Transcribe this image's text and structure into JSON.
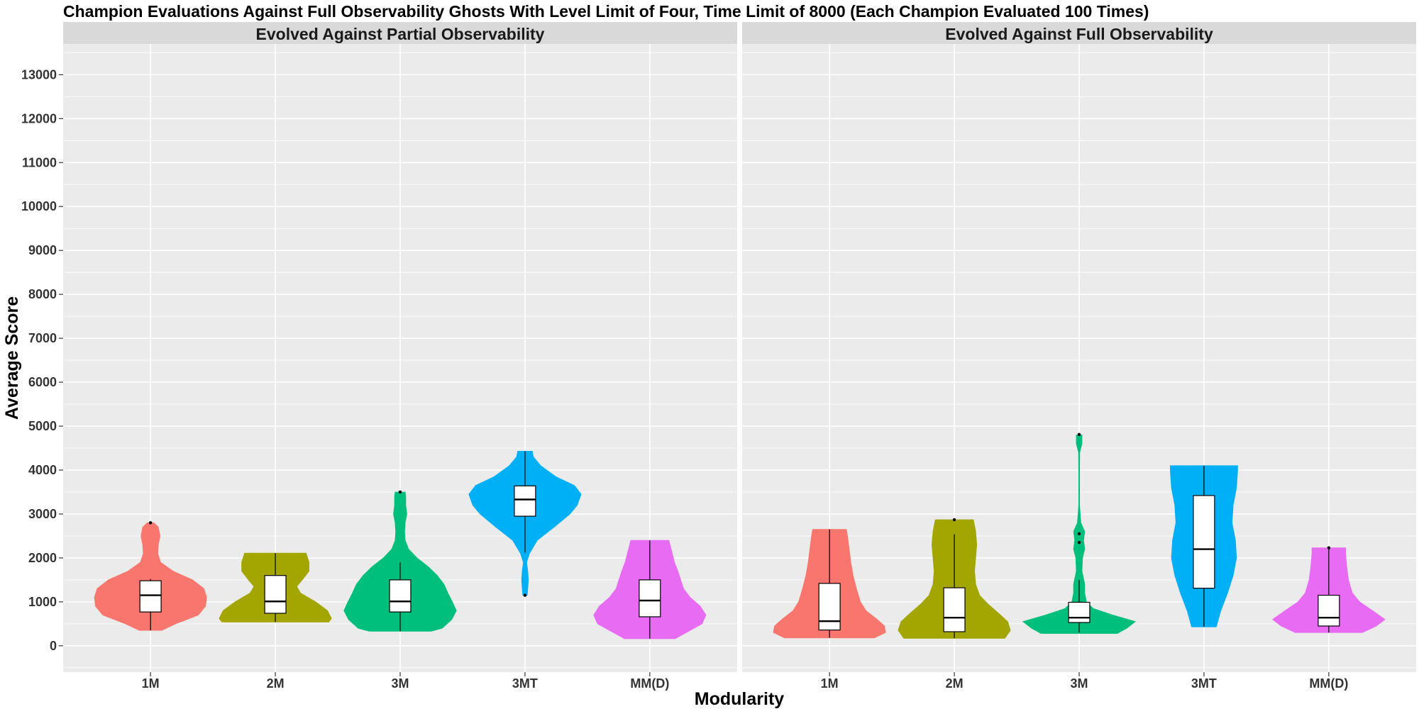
{
  "chart_data": {
    "type": "violin",
    "title": "Champion Evaluations Against Full Observability Ghosts With Level Limit of Four, Time Limit of 8000  (Each Champion Evaluated 100 Times)",
    "xlabel": "Modularity",
    "ylabel": "Average Score",
    "ylim": [
      -600,
      13700
    ],
    "yticks": [
      0,
      1000,
      2000,
      3000,
      4000,
      5000,
      6000,
      7000,
      8000,
      9000,
      10000,
      11000,
      12000,
      13000
    ],
    "categories": [
      "1M",
      "2M",
      "3M",
      "3MT",
      "MM(D)"
    ],
    "colors": {
      "1M": "#F8766D",
      "2M": "#A3A500",
      "3M": "#00BF7D",
      "3MT": "#00B0F6",
      "MM(D)": "#E76BF3"
    },
    "panel_background": "#EBEBEB",
    "strip_background": "#D9D9D9",
    "grid": true,
    "legend": "none",
    "panels": [
      {
        "name": "Evolved Against Partial Observability",
        "groups": [
          {
            "category": "1M",
            "box": {
              "q1": 770,
              "median": 1150,
              "q3": 1480,
              "whisker_low": 350,
              "whisker_high": 1520
            },
            "outliers": [
              2800
            ],
            "violin": [
              [
                350,
                0.2
              ],
              [
                500,
                0.45
              ],
              [
                700,
                0.85
              ],
              [
                900,
                0.98
              ],
              [
                1100,
                1.0
              ],
              [
                1300,
                0.95
              ],
              [
                1500,
                0.75
              ],
              [
                1700,
                0.4
              ],
              [
                1900,
                0.18
              ],
              [
                2100,
                0.13
              ],
              [
                2300,
                0.14
              ],
              [
                2500,
                0.17
              ],
              [
                2700,
                0.14
              ],
              [
                2800,
                0.06
              ]
            ]
          },
          {
            "category": "2M",
            "box": {
              "q1": 740,
              "median": 1010,
              "q3": 1600,
              "whisker_low": 540,
              "whisker_high": 2110
            },
            "outliers": [],
            "violin": [
              [
                540,
                0.95
              ],
              [
                620,
                1.0
              ],
              [
                800,
                0.93
              ],
              [
                1000,
                0.72
              ],
              [
                1200,
                0.45
              ],
              [
                1350,
                0.38
              ],
              [
                1500,
                0.48
              ],
              [
                1700,
                0.6
              ],
              [
                1900,
                0.6
              ],
              [
                2100,
                0.55
              ],
              [
                2110,
                0.55
              ]
            ]
          },
          {
            "category": "3M",
            "box": {
              "q1": 770,
              "median": 1010,
              "q3": 1500,
              "whisker_low": 330,
              "whisker_high": 1900
            },
            "outliers": [
              3500
            ],
            "violin": [
              [
                330,
                0.55
              ],
              [
                400,
                0.75
              ],
              [
                600,
                0.92
              ],
              [
                800,
                1.0
              ],
              [
                1000,
                0.93
              ],
              [
                1200,
                0.85
              ],
              [
                1400,
                0.78
              ],
              [
                1600,
                0.66
              ],
              [
                1800,
                0.5
              ],
              [
                2000,
                0.3
              ],
              [
                2200,
                0.15
              ],
              [
                2400,
                0.09
              ],
              [
                2600,
                0.08
              ],
              [
                2800,
                0.09
              ],
              [
                3000,
                0.12
              ],
              [
                3200,
                0.1
              ],
              [
                3400,
                0.1
              ],
              [
                3500,
                0.09
              ]
            ]
          },
          {
            "category": "3MT",
            "box": {
              "q1": 2950,
              "median": 3330,
              "q3": 3640,
              "whisker_low": 2120,
              "whisker_high": 4430
            },
            "outliers": [
              1150
            ],
            "violin": [
              [
                1150,
                0.04
              ],
              [
                1300,
                0.05
              ],
              [
                1500,
                0.06
              ],
              [
                1700,
                0.05
              ],
              [
                1900,
                0.03
              ],
              [
                2100,
                0.08
              ],
              [
                2400,
                0.22
              ],
              [
                2700,
                0.52
              ],
              [
                3000,
                0.8
              ],
              [
                3200,
                0.93
              ],
              [
                3450,
                1.0
              ],
              [
                3650,
                0.88
              ],
              [
                3850,
                0.55
              ],
              [
                4100,
                0.28
              ],
              [
                4300,
                0.15
              ],
              [
                4430,
                0.13
              ]
            ]
          },
          {
            "category": "MM(D)",
            "box": {
              "q1": 660,
              "median": 1030,
              "q3": 1500,
              "whisker_low": 160,
              "whisker_high": 2400
            },
            "outliers": [],
            "violin": [
              [
                160,
                0.45
              ],
              [
                300,
                0.65
              ],
              [
                500,
                0.93
              ],
              [
                700,
                1.0
              ],
              [
                900,
                0.9
              ],
              [
                1100,
                0.72
              ],
              [
                1300,
                0.6
              ],
              [
                1500,
                0.55
              ],
              [
                1700,
                0.5
              ],
              [
                1900,
                0.44
              ],
              [
                2100,
                0.4
              ],
              [
                2300,
                0.36
              ],
              [
                2400,
                0.34
              ]
            ]
          }
        ]
      },
      {
        "name": "Evolved Against Full Observability",
        "groups": [
          {
            "category": "1M",
            "box": {
              "q1": 360,
              "median": 560,
              "q3": 1420,
              "whisker_low": 180,
              "whisker_high": 2650
            },
            "outliers": [],
            "violin": [
              [
                180,
                0.8
              ],
              [
                300,
                1.0
              ],
              [
                450,
                0.98
              ],
              [
                600,
                0.85
              ],
              [
                800,
                0.65
              ],
              [
                1000,
                0.55
              ],
              [
                1300,
                0.48
              ],
              [
                1600,
                0.42
              ],
              [
                1900,
                0.38
              ],
              [
                2200,
                0.35
              ],
              [
                2500,
                0.32
              ],
              [
                2650,
                0.3
              ]
            ]
          },
          {
            "category": "2M",
            "box": {
              "q1": 320,
              "median": 640,
              "q3": 1320,
              "whisker_low": 170,
              "whisker_high": 2540
            },
            "outliers": [
              2870
            ],
            "violin": [
              [
                170,
                0.9
              ],
              [
                350,
                1.0
              ],
              [
                550,
                0.95
              ],
              [
                750,
                0.78
              ],
              [
                950,
                0.6
              ],
              [
                1150,
                0.45
              ],
              [
                1400,
                0.38
              ],
              [
                1700,
                0.36
              ],
              [
                2000,
                0.38
              ],
              [
                2300,
                0.4
              ],
              [
                2600,
                0.38
              ],
              [
                2870,
                0.34
              ]
            ]
          },
          {
            "category": "3M",
            "box": {
              "q1": 530,
              "median": 640,
              "q3": 990,
              "whisker_low": 300,
              "whisker_high": 1500
            },
            "outliers": [
              2350,
              2550,
              4810
            ],
            "violin": [
              [
                280,
                0.68
              ],
              [
                400,
                0.85
              ],
              [
                550,
                1.0
              ],
              [
                700,
                0.6
              ],
              [
                850,
                0.25
              ],
              [
                1000,
                0.13
              ],
              [
                1200,
                0.1
              ],
              [
                1400,
                0.1
              ],
              [
                1700,
                0.05
              ],
              [
                2000,
                0.06
              ],
              [
                2200,
                0.1
              ],
              [
                2400,
                0.08
              ],
              [
                2600,
                0.1
              ],
              [
                2800,
                0.03
              ],
              [
                3200,
                0.007
              ],
              [
                3600,
                0.007
              ],
              [
                4000,
                0.007
              ],
              [
                4400,
                0.01
              ],
              [
                4600,
                0.05
              ],
              [
                4800,
                0.05
              ]
            ]
          },
          {
            "category": "3MT",
            "box": {
              "q1": 1310,
              "median": 2200,
              "q3": 3420,
              "whisker_low": 430,
              "whisker_high": 4100
            },
            "outliers": [],
            "violin": [
              [
                430,
                0.22
              ],
              [
                800,
                0.3
              ],
              [
                1200,
                0.42
              ],
              [
                1600,
                0.52
              ],
              [
                2000,
                0.58
              ],
              [
                2400,
                0.56
              ],
              [
                2800,
                0.5
              ],
              [
                3200,
                0.52
              ],
              [
                3600,
                0.58
              ],
              [
                4000,
                0.6
              ],
              [
                4100,
                0.6
              ]
            ]
          },
          {
            "category": "MM(D)",
            "box": {
              "q1": 450,
              "median": 640,
              "q3": 1150,
              "whisker_low": 300,
              "whisker_high": 2230
            },
            "outliers": [
              2230
            ],
            "violin": [
              [
                300,
                0.6
              ],
              [
                450,
                0.85
              ],
              [
                600,
                1.0
              ],
              [
                800,
                0.78
              ],
              [
                1000,
                0.55
              ],
              [
                1200,
                0.42
              ],
              [
                1500,
                0.35
              ],
              [
                1800,
                0.32
              ],
              [
                2100,
                0.3
              ],
              [
                2230,
                0.3
              ]
            ]
          }
        ]
      }
    ]
  }
}
